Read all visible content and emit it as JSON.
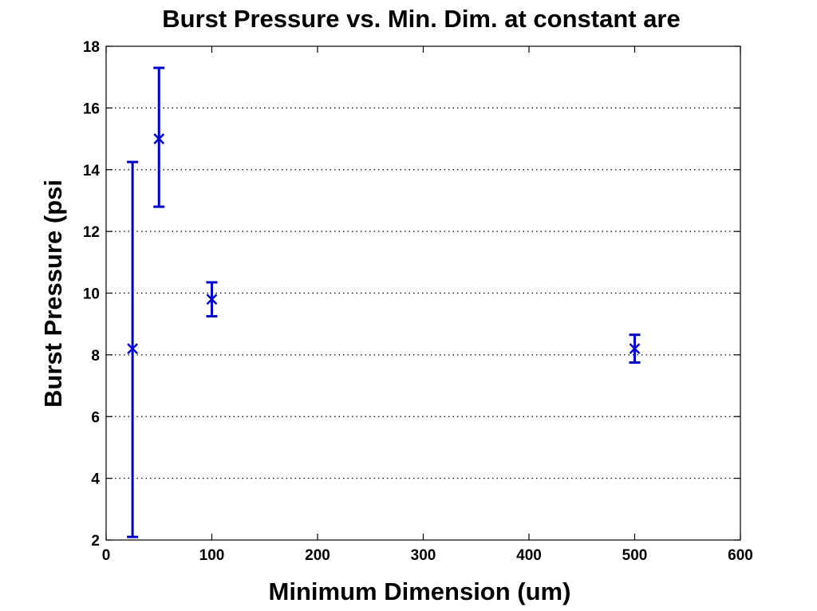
{
  "chart_data": {
    "type": "scatter",
    "title": "Burst Pressure vs. Min. Dim. at constant are",
    "xlabel": "Minimum Dimension (um)",
    "ylabel": "Burst Pressure (psi",
    "xlim": [
      0,
      600
    ],
    "ylim": [
      2,
      18
    ],
    "xticks": [
      0,
      100,
      200,
      300,
      400,
      500,
      600
    ],
    "yticks": [
      2,
      4,
      6,
      8,
      10,
      12,
      14,
      16,
      18
    ],
    "grid": "horizontal-dotted",
    "marker": "x",
    "series_color": "#0000cc",
    "series": [
      {
        "points": [
          {
            "x": 25,
            "y": 8.2,
            "low": 2.1,
            "high": 14.25
          },
          {
            "x": 50,
            "y": 15.0,
            "low": 12.8,
            "high": 17.3
          },
          {
            "x": 100,
            "y": 9.8,
            "low": 9.25,
            "high": 10.35
          },
          {
            "x": 500,
            "y": 8.2,
            "low": 7.75,
            "high": 8.65
          }
        ]
      }
    ]
  }
}
